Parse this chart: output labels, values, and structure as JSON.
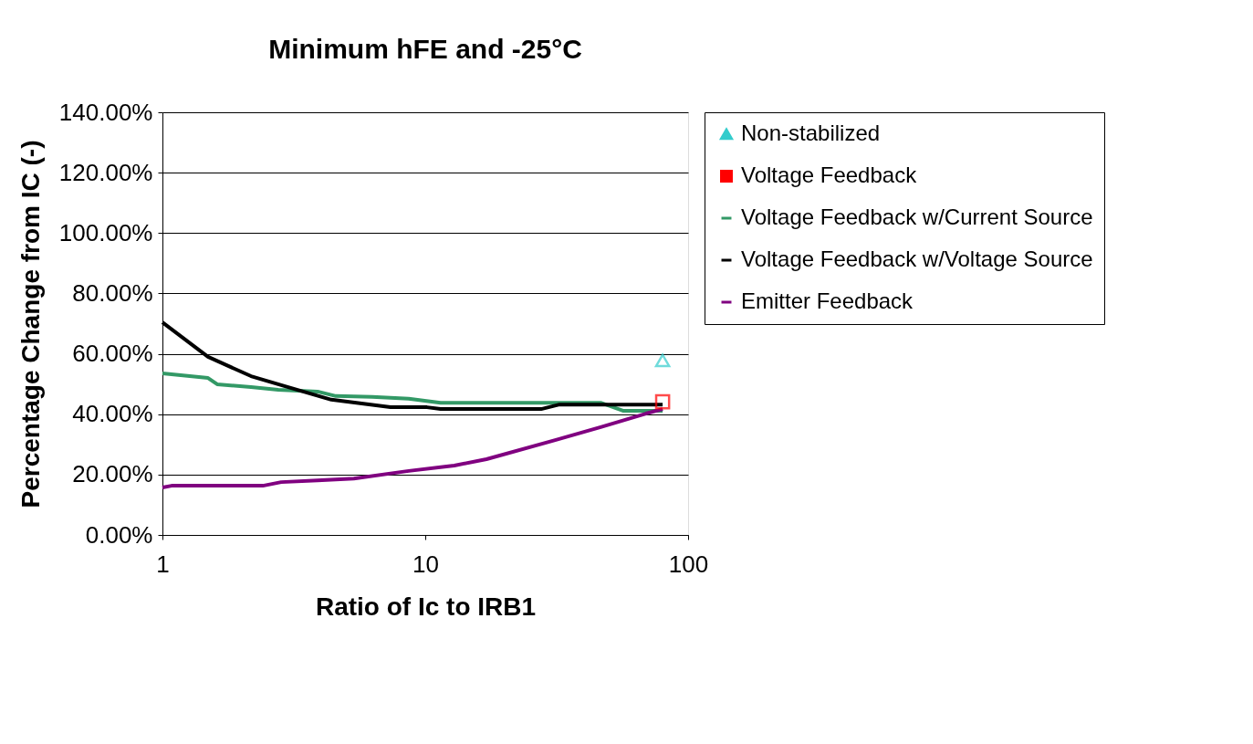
{
  "chart_data": {
    "type": "line",
    "title": "Minimum hFE and -25°C",
    "xlabel": "Ratio of Ic to IRB1",
    "ylabel": "Percentage Change from IC (-)",
    "log": "x",
    "xlim": [
      1,
      100
    ],
    "xticks": [
      1,
      10,
      100
    ],
    "ylim": [
      0,
      140
    ],
    "yticks": [
      {
        "value": 0,
        "label": "0.00%"
      },
      {
        "value": 20,
        "label": "20.00%"
      },
      {
        "value": 40,
        "label": "40.00%"
      },
      {
        "value": 60,
        "label": "60.00%"
      },
      {
        "value": 80,
        "label": "80.00%"
      },
      {
        "value": 100,
        "label": "100.00%"
      },
      {
        "value": 120,
        "label": "120.00%"
      },
      {
        "value": 140,
        "label": "140.00%"
      }
    ],
    "grid": "y",
    "legend": "right",
    "series": [
      {
        "name": "Non-stabilized",
        "type": "scatter",
        "marker": "triangle",
        "color": "#33cccc",
        "x": [
          80
        ],
        "values": [
          57.8
        ]
      },
      {
        "name": "Voltage Feedback",
        "type": "scatter",
        "marker": "square",
        "color": "#ff0000",
        "x": [
          80
        ],
        "values": [
          44.1
        ]
      },
      {
        "name": "Voltage Feedback w/Current Source",
        "marker": "none",
        "color": "#339966",
        "x": [
          1,
          1.271,
          1.491,
          1.615,
          2.173,
          2.76,
          3.89,
          4.57,
          6.28,
          8.65,
          11.44,
          46.5,
          56.8,
          80
        ],
        "values": [
          53.5,
          52.6,
          52.0,
          49.9,
          49.0,
          48.1,
          47.5,
          46.0,
          45.7,
          45.1,
          43.8,
          43.8,
          41.1,
          41.1
        ]
      },
      {
        "name": "Voltage Feedback w/Voltage Source",
        "marker": "none",
        "color": "#000000",
        "x": [
          1,
          1.491,
          2.173,
          2.99,
          4.39,
          7.37,
          10.15,
          11.44,
          27.6,
          32.4,
          80
        ],
        "values": [
          70.4,
          59.0,
          52.6,
          49.0,
          44.8,
          42.3,
          42.3,
          41.7,
          41.7,
          43.2,
          43.2
        ]
      },
      {
        "name": "Emitter Feedback",
        "marker": "none",
        "color": "#800080",
        "x": [
          1,
          1.083,
          2.41,
          2.83,
          3.89,
          5.35,
          8.65,
          12.9,
          17.1,
          31.2,
          46.5,
          69.1,
          80
        ],
        "values": [
          15.7,
          16.3,
          16.3,
          17.5,
          18.1,
          18.7,
          21.2,
          23.0,
          25.1,
          31.4,
          35.7,
          40.2,
          41.7
        ]
      }
    ]
  }
}
